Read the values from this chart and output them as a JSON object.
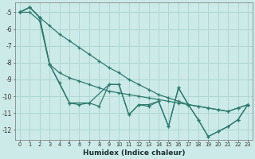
{
  "xlabel": "Humidex (Indice chaleur)",
  "background_color": "#cceae7",
  "grid_color": "#aad4d0",
  "line_color": "#2d7a6e",
  "xlim": [
    -0.5,
    23.5
  ],
  "ylim": [
    -12.6,
    -4.4
  ],
  "yticks": [
    -5,
    -6,
    -7,
    -8,
    -9,
    -10,
    -11,
    -12
  ],
  "xticks": [
    0,
    1,
    2,
    3,
    4,
    5,
    6,
    7,
    8,
    9,
    10,
    11,
    12,
    13,
    14,
    15,
    16,
    17,
    18,
    19,
    20,
    21,
    22,
    23
  ],
  "series1": {
    "x": [
      0,
      1,
      2,
      3,
      4,
      5,
      6,
      7,
      8,
      9,
      10,
      11,
      12,
      13,
      14,
      15,
      16,
      17,
      18,
      19,
      20,
      21,
      22,
      23
    ],
    "y": [
      -5.0,
      -4.7,
      -5.3,
      -5.8,
      -6.3,
      -6.7,
      -7.1,
      -7.5,
      -7.9,
      -8.3,
      -8.6,
      -9.0,
      -9.3,
      -9.6,
      -9.9,
      -10.1,
      -10.3,
      -10.5,
      -10.6,
      -10.7,
      -10.8,
      -10.9,
      -10.7,
      -10.5
    ]
  },
  "series2": {
    "x": [
      0,
      1,
      2,
      3,
      4,
      5,
      6,
      7,
      8,
      9,
      10,
      11,
      12,
      13,
      14,
      15,
      16,
      17,
      18,
      19,
      20,
      21,
      22,
      23
    ],
    "y": [
      -5.0,
      -5.0,
      -5.5,
      -8.1,
      -8.6,
      -8.9,
      -9.1,
      -9.3,
      -9.5,
      -9.7,
      -9.8,
      -9.9,
      -10.0,
      -10.1,
      -10.2,
      -10.3,
      -10.4,
      -10.5,
      -10.6,
      -10.7,
      -10.8,
      -10.9,
      -10.7,
      -10.5
    ]
  },
  "series3": {
    "x": [
      0,
      1,
      2,
      3,
      4,
      5,
      6,
      7,
      8,
      9,
      10,
      11,
      12,
      13,
      14,
      15,
      16,
      17,
      18,
      19,
      20,
      21,
      22,
      23
    ],
    "y": [
      -5.0,
      -4.7,
      -5.3,
      -8.1,
      -9.2,
      -10.4,
      -10.5,
      -10.4,
      -10.6,
      -9.3,
      -9.3,
      -11.1,
      -10.5,
      -10.6,
      -10.3,
      -11.8,
      -9.5,
      -10.5,
      -11.4,
      -12.4,
      -12.1,
      -11.8,
      -11.4,
      -10.5
    ]
  },
  "series4": {
    "x": [
      0,
      1,
      2,
      3,
      5,
      7,
      9,
      10,
      11,
      12,
      13,
      14,
      15,
      16,
      17,
      18,
      19,
      20,
      21,
      22,
      23
    ],
    "y": [
      -5.0,
      -4.7,
      -5.3,
      -8.1,
      -10.4,
      -10.4,
      -9.3,
      -9.3,
      -11.1,
      -10.5,
      -10.5,
      -10.3,
      -11.8,
      -9.5,
      -10.5,
      -11.4,
      -12.4,
      -12.1,
      -11.8,
      -11.4,
      -10.5
    ]
  }
}
